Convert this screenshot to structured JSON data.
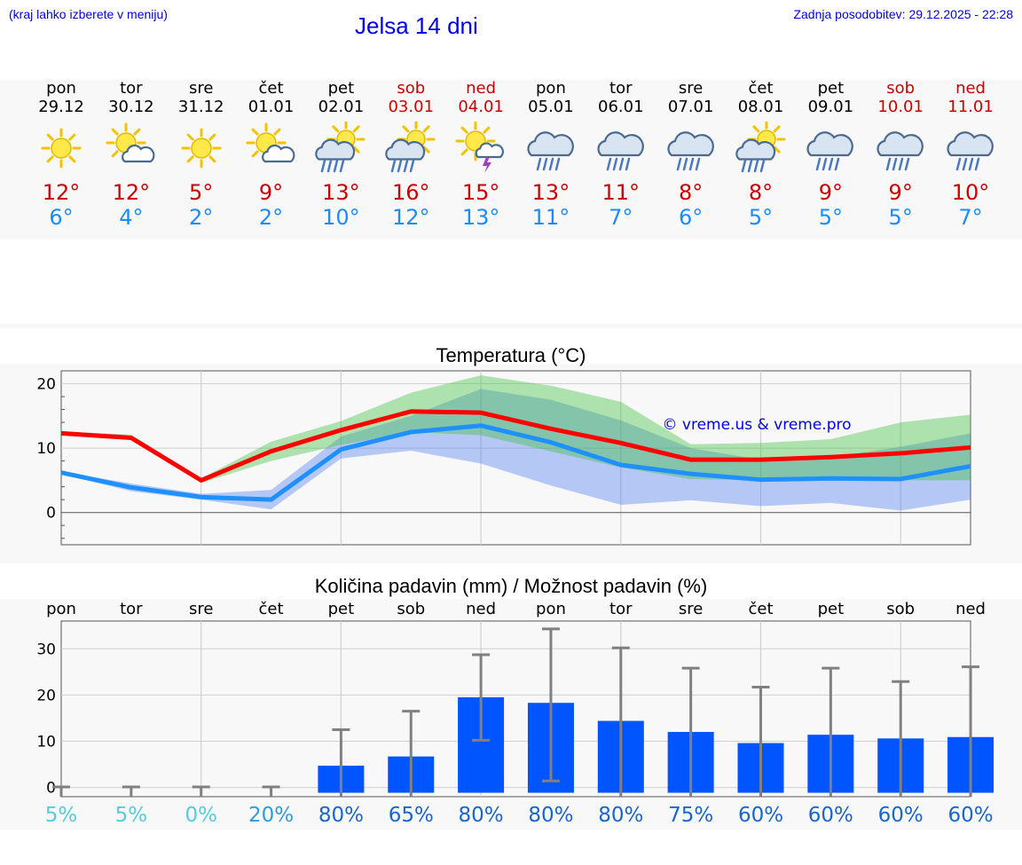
{
  "header": {
    "location_hint": "(kraj lahko izberete v meniju)",
    "title": "Jelsa 14 dni",
    "updated": "Zadnja posodobitev: 29.12.2025 - 22:28"
  },
  "colors": {
    "max_temp": "#cc0000",
    "min_temp": "#1a8cff",
    "weekend": "#cc0000",
    "precip_bar": "#0055ff",
    "credit": "#0000e6"
  },
  "days": [
    {
      "name": "pon",
      "date": "29.12",
      "weekend": false,
      "icon": "sun-icon",
      "max": "12°",
      "min": "6°"
    },
    {
      "name": "tor",
      "date": "30.12",
      "weekend": false,
      "icon": "sun-cloud-icon",
      "max": "12°",
      "min": "4°"
    },
    {
      "name": "sre",
      "date": "31.12",
      "weekend": false,
      "icon": "sun-icon",
      "max": "5°",
      "min": "2°"
    },
    {
      "name": "čet",
      "date": "01.01",
      "weekend": false,
      "icon": "sun-cloud-icon",
      "max": "9°",
      "min": "2°"
    },
    {
      "name": "pet",
      "date": "02.01",
      "weekend": false,
      "icon": "sun-rain-cloud-icon",
      "max": "13°",
      "min": "10°"
    },
    {
      "name": "sob",
      "date": "03.01",
      "weekend": true,
      "icon": "sun-rain-cloud-icon",
      "max": "16°",
      "min": "12°"
    },
    {
      "name": "ned",
      "date": "04.01",
      "weekend": true,
      "icon": "sun-thunder-icon",
      "max": "15°",
      "min": "13°"
    },
    {
      "name": "pon",
      "date": "05.01",
      "weekend": false,
      "icon": "rain-cloud-icon",
      "max": "13°",
      "min": "11°"
    },
    {
      "name": "tor",
      "date": "06.01",
      "weekend": false,
      "icon": "rain-cloud-icon",
      "max": "11°",
      "min": "7°"
    },
    {
      "name": "sre",
      "date": "07.01",
      "weekend": false,
      "icon": "rain-cloud-icon",
      "max": "8°",
      "min": "6°"
    },
    {
      "name": "čet",
      "date": "08.01",
      "weekend": false,
      "icon": "sun-rain-cloud-icon",
      "max": "8°",
      "min": "5°"
    },
    {
      "name": "pet",
      "date": "09.01",
      "weekend": false,
      "icon": "rain-cloud-icon",
      "max": "9°",
      "min": "5°"
    },
    {
      "name": "sob",
      "date": "10.01",
      "weekend": true,
      "icon": "rain-cloud-icon",
      "max": "9°",
      "min": "5°"
    },
    {
      "name": "ned",
      "date": "11.01",
      "weekend": true,
      "icon": "rain-cloud-icon",
      "max": "10°",
      "min": "7°"
    }
  ],
  "chart_data": [
    {
      "type": "line",
      "title": "Temperatura (°C)",
      "credit": "© vreme.us & vreme.pro",
      "x": [
        0,
        1,
        2,
        3,
        4,
        5,
        6,
        7,
        8,
        9,
        10,
        11,
        12,
        13
      ],
      "ylim": [
        -5,
        22
      ],
      "yticks": [
        0,
        10,
        20
      ],
      "grid": true,
      "series": [
        {
          "name": "max",
          "values": [
            12.3,
            11.6,
            5.0,
            9.5,
            12.8,
            15.7,
            15.5,
            13.0,
            10.8,
            8.2,
            8.2,
            8.6,
            9.2,
            10.1
          ],
          "band_low": [
            12.0,
            11.3,
            4.6,
            8.0,
            10.5,
            12.5,
            12.0,
            9.5,
            7.0,
            5.2,
            5.0,
            5.3,
            5.0,
            5.0
          ],
          "band_high": [
            12.6,
            12.1,
            5.3,
            11.0,
            14.2,
            18.6,
            21.3,
            19.7,
            17.2,
            10.6,
            10.8,
            11.4,
            14.0,
            15.2
          ]
        },
        {
          "name": "min",
          "values": [
            6.2,
            3.9,
            2.4,
            2.0,
            9.8,
            12.5,
            13.5,
            10.9,
            7.4,
            6.0,
            5.1,
            5.3,
            5.2,
            7.2
          ],
          "band_low": [
            6.0,
            3.3,
            2.0,
            0.5,
            8.4,
            9.6,
            7.6,
            4.2,
            1.2,
            1.9,
            1.0,
            1.5,
            0.3,
            2.0
          ],
          "band_high": [
            6.4,
            4.5,
            2.9,
            3.5,
            11.8,
            15.0,
            19.2,
            17.5,
            14.3,
            10.0,
            8.2,
            8.6,
            10.2,
            12.3
          ]
        }
      ]
    },
    {
      "type": "bar",
      "title": "Količina padavin (mm) / Možnost padavin (%)",
      "categories": [
        "pon",
        "tor",
        "sre",
        "čet",
        "pet",
        "sob",
        "ned",
        "pon",
        "tor",
        "sre",
        "čet",
        "pet",
        "sob",
        "ned"
      ],
      "values": [
        0,
        0,
        0,
        0,
        4.7,
        6.7,
        19.5,
        18.3,
        14.4,
        12.0,
        9.6,
        11.4,
        10.6,
        10.9
      ],
      "error_low": [
        0,
        0,
        0,
        0,
        0,
        0,
        10.2,
        1.4,
        0,
        0,
        0,
        0,
        0,
        0
      ],
      "error_high": [
        0.1,
        0.1,
        0.1,
        0.1,
        12.5,
        16.5,
        28.7,
        34.3,
        30.2,
        25.8,
        21.7,
        25.8,
        22.9,
        26.1
      ],
      "probability": [
        "5%",
        "5%",
        "0%",
        "20%",
        "80%",
        "65%",
        "80%",
        "80%",
        "80%",
        "75%",
        "60%",
        "60%",
        "60%",
        "60%"
      ],
      "ylim": [
        -2,
        36
      ],
      "yticks": [
        0,
        10,
        20,
        30
      ],
      "grid": true
    }
  ]
}
